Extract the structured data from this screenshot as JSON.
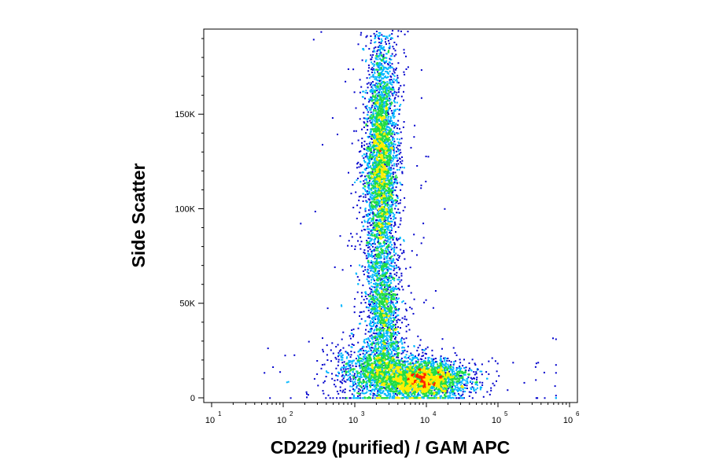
{
  "chart_data": {
    "type": "scatter",
    "style": "density-dot-plot",
    "xlabel": "CD229 (purified) / GAM APC",
    "ylabel": "Side Scatter",
    "x_scale": "log",
    "xlim": [
      10,
      1000000
    ],
    "ylim": [
      0,
      195000
    ],
    "x_ticks": [
      {
        "value": 10,
        "base": "10",
        "exp": "1"
      },
      {
        "value": 100,
        "base": "10",
        "exp": "2"
      },
      {
        "value": 1000,
        "base": "10",
        "exp": "3"
      },
      {
        "value": 10000,
        "base": "10",
        "exp": "4"
      },
      {
        "value": 100000,
        "base": "10",
        "exp": "5"
      },
      {
        "value": 1000000,
        "base": "10",
        "exp": "6"
      }
    ],
    "y_ticks": [
      {
        "value": 0,
        "label": "0"
      },
      {
        "value": 50000,
        "label": "50K"
      },
      {
        "value": 100000,
        "label": "100K"
      },
      {
        "value": 150000,
        "label": "150K"
      }
    ],
    "density_colors": [
      "#0000cc",
      "#00b7ff",
      "#22dd44",
      "#ffee00",
      "#ff2200"
    ],
    "populations": [
      {
        "x_center": 2300,
        "y_center": 125000,
        "x_log_spread": 0.11,
        "y_spread": 35000,
        "relative_count": 0.42
      },
      {
        "x_center": 2500,
        "y_center": 45000,
        "x_log_spread": 0.12,
        "y_spread": 18000,
        "relative_count": 0.14
      },
      {
        "x_center": 9000,
        "y_center": 10000,
        "x_log_spread": 0.32,
        "y_spread": 5000,
        "relative_count": 0.3
      },
      {
        "x_center": 2000,
        "y_center": 15000,
        "x_log_spread": 0.28,
        "y_spread": 8000,
        "relative_count": 0.14
      }
    ],
    "grid": false,
    "legend": "none"
  }
}
